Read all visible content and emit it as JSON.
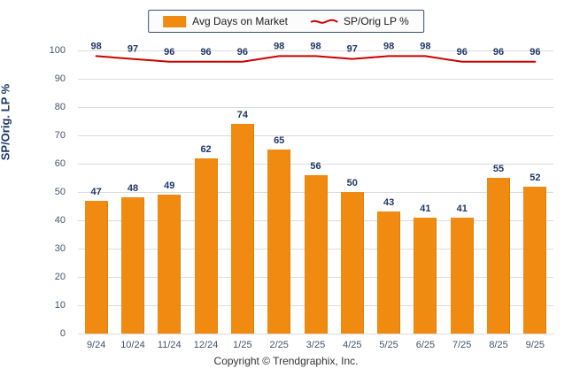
{
  "legend": {
    "bar_label": "Avg Days on Market",
    "line_label": "SP/Orig LP %"
  },
  "footer": "Copyright © Trendgraphix, Inc.",
  "colors": {
    "bar": "#F08A10",
    "line": "#CC0000",
    "grid": "#DCDCDC",
    "value_label": "#1F3864",
    "tick_label": "#44546A"
  },
  "chart_data": {
    "type": "bar",
    "categories": [
      "9/24",
      "10/24",
      "11/24",
      "12/24",
      "1/25",
      "2/25",
      "3/25",
      "4/25",
      "5/25",
      "6/25",
      "7/25",
      "8/25",
      "9/25"
    ],
    "series": [
      {
        "name": "Avg Days on Market",
        "type": "bar",
        "values": [
          47,
          48,
          49,
          62,
          74,
          65,
          56,
          50,
          43,
          41,
          41,
          55,
          52
        ]
      },
      {
        "name": "SP/Orig LP %",
        "type": "line",
        "values": [
          98,
          97,
          96,
          96,
          96,
          98,
          98,
          97,
          98,
          98,
          96,
          96,
          96
        ]
      }
    ],
    "title": "",
    "xlabel": "",
    "ylabel": "SP/Orig. LP %",
    "ylim": [
      0,
      100
    ],
    "yticks": [
      0,
      10,
      20,
      30,
      40,
      50,
      60,
      70,
      80,
      90,
      100
    ],
    "grid": true,
    "legend_position": "top"
  }
}
